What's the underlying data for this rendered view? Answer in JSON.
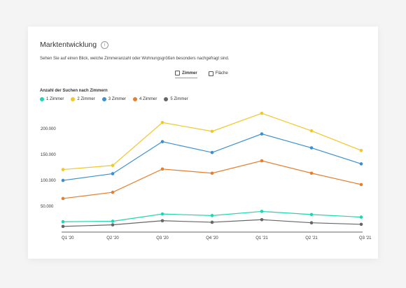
{
  "card": {
    "title": "Marktentwicklung",
    "info_glyph": "i",
    "subtitle": "Sehen Sie auf einen Blick, welche Zimmeranzahl oder Wohnungsgrößen besonders nachgefragt sind."
  },
  "tabs": [
    {
      "label": "Zimmer",
      "active": true,
      "icon": "square-icon"
    },
    {
      "label": "Fläche",
      "active": false,
      "icon": "square-icon"
    }
  ],
  "chart_data": {
    "type": "line",
    "title": "Anzahl der Suchen nach Zimmern",
    "categories": [
      "Q1 '20",
      "Q2 '20",
      "Q3 '20",
      "Q4 '20",
      "Q1 '21",
      "Q2 '21",
      "Q3 '21"
    ],
    "y_ticks": [
      50000,
      100000,
      150000,
      200000
    ],
    "y_tick_labels": [
      "50.000",
      "100.000",
      "150.000",
      "200.000"
    ],
    "ylim": [
      0,
      230000
    ],
    "grid": false,
    "legend_position": "top-left",
    "series": [
      {
        "name": "1 Zimmer",
        "color": "#1ed6b3",
        "values": [
          20000,
          21000,
          35000,
          32000,
          40000,
          34000,
          29000
        ]
      },
      {
        "name": "2 Zimmer",
        "color": "#f1c72a",
        "values": [
          121000,
          129000,
          212000,
          195000,
          230000,
          196000,
          158000
        ]
      },
      {
        "name": "3 Zimmer",
        "color": "#3b8fd0",
        "values": [
          100000,
          113000,
          175000,
          154000,
          190000,
          163000,
          132000
        ]
      },
      {
        "name": "4 Zimmer",
        "color": "#e57f2e",
        "values": [
          65000,
          77000,
          122000,
          114000,
          138000,
          114000,
          92000
        ]
      },
      {
        "name": "5 Zimmer",
        "color": "#666666",
        "values": [
          11000,
          14000,
          22000,
          19000,
          24000,
          18000,
          15000
        ]
      }
    ]
  }
}
